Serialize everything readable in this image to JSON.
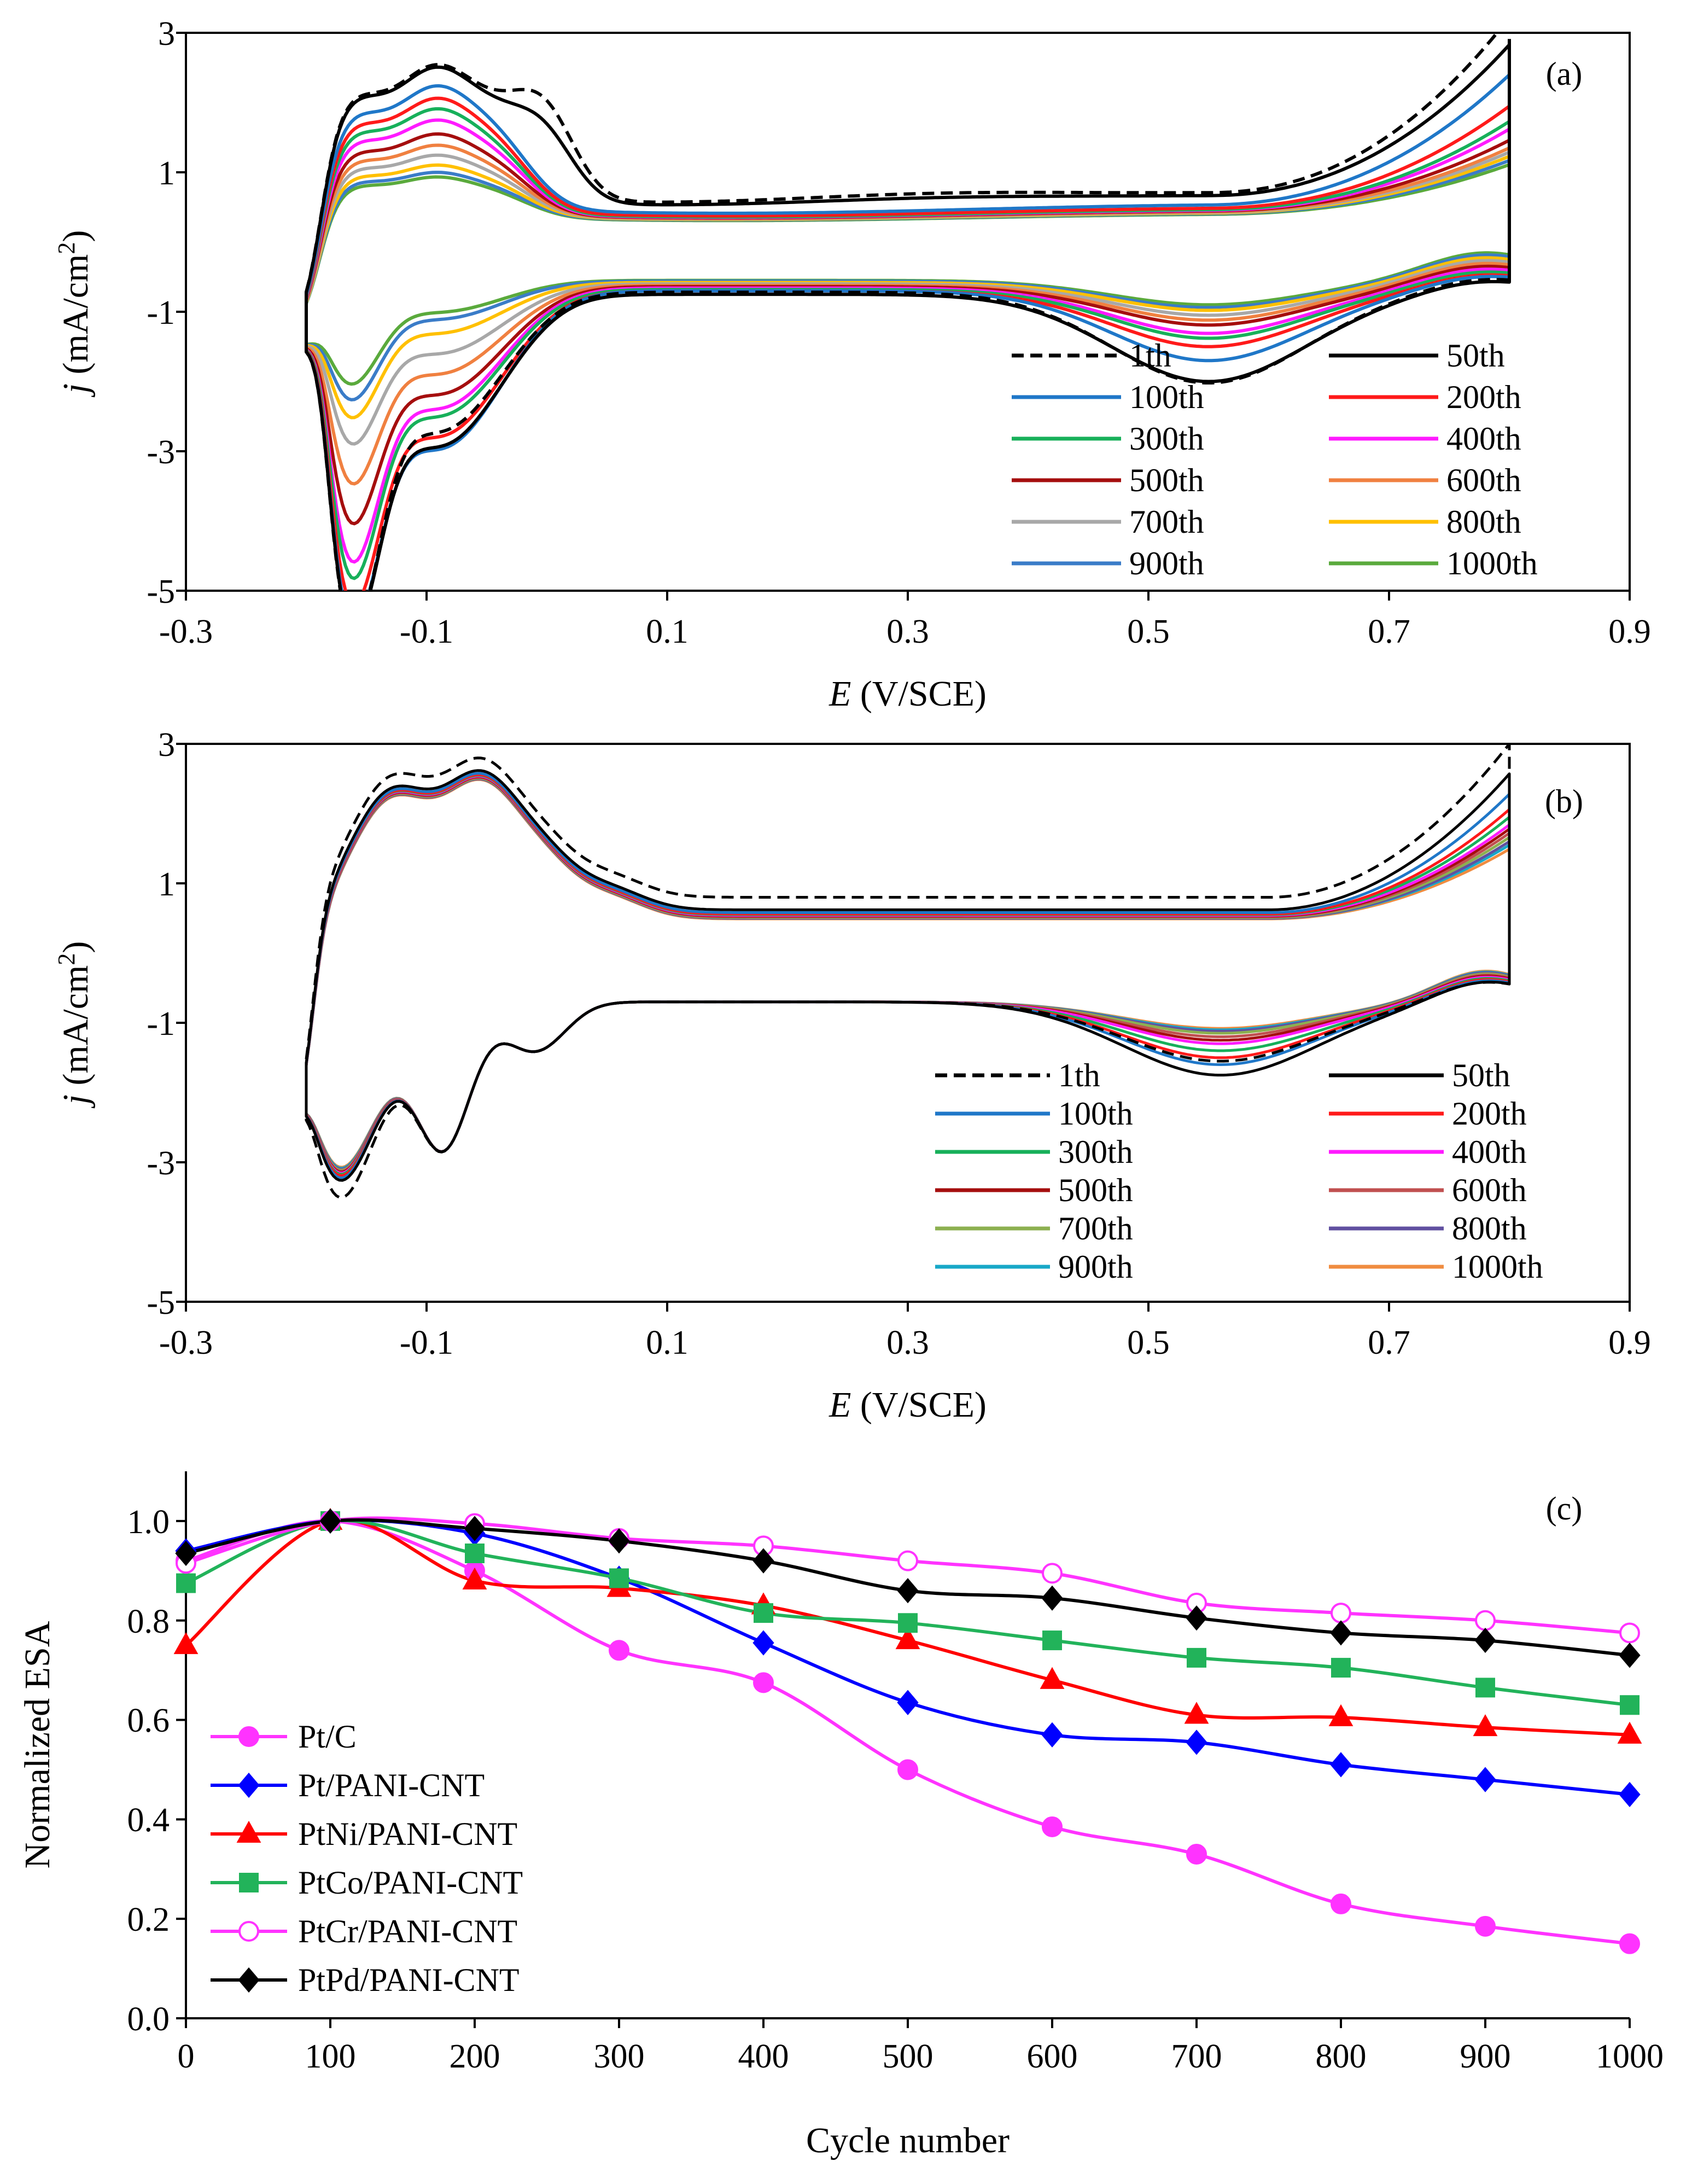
{
  "chart_data": [
    {
      "panel": "(a)",
      "type": "line",
      "xlabel_italic": "E",
      "xlabel_rest": " (V/SCE)",
      "ylabel_italic": "j",
      "ylabel_rest": " (mA/cm",
      "ylabel_sup": "2",
      "ylabel_close": ")",
      "xlim": [
        -0.3,
        0.9
      ],
      "ylim": [
        -5,
        3
      ],
      "xticks": [
        "-0.3",
        "-0.1",
        "0.1",
        "0.3",
        "0.5",
        "0.7",
        "0.9"
      ],
      "yticks": [
        "3",
        "1",
        "-1",
        "-3",
        "-5"
      ],
      "legend_location": "bottom-right",
      "legend": [
        {
          "label": "1th",
          "color": "#000000",
          "dash": true
        },
        {
          "label": "50th",
          "color": "#000000"
        },
        {
          "label": "100th",
          "color": "#1f77c8"
        },
        {
          "label": "200th",
          "color": "#ff1a1a"
        },
        {
          "label": "300th",
          "color": "#17b05a"
        },
        {
          "label": "400th",
          "color": "#ff1aff"
        },
        {
          "label": "500th",
          "color": "#a50e0e"
        },
        {
          "label": "600th",
          "color": "#f08040"
        },
        {
          "label": "700th",
          "color": "#a8a8a8"
        },
        {
          "label": "800th",
          "color": "#ffc000"
        },
        {
          "label": "900th",
          "color": "#3a7cc8"
        },
        {
          "label": "1000th",
          "color": "#5aaa3c"
        }
      ],
      "curve_params": [
        {
          "s": 1.0,
          "hump": 0.35,
          "oxtail": 2.5,
          "redpk": 1.3,
          "baseU": 0.72,
          "baseL": -0.72,
          "hupd": 2.2,
          "hupd_red": 4.5,
          "q": 0.0
        },
        {
          "s": 1.0,
          "hump": 0.25,
          "oxtail": 2.15,
          "redpk": 1.25,
          "baseU": 0.68,
          "baseL": -0.75,
          "hupd": 2.4,
          "hupd_red": 4.4,
          "q": 0.0
        },
        {
          "s": 0.92,
          "hump": 0.0,
          "oxtail": 1.85,
          "redpk": 1.0,
          "baseU": 0.55,
          "baseL": -0.7,
          "hupd": 2.5,
          "hupd_red": 4.35,
          "q": 0.1
        },
        {
          "s": 0.85,
          "hump": 0.0,
          "oxtail": 1.45,
          "redpk": 0.8,
          "baseU": 0.5,
          "baseL": -0.7,
          "hupd": 2.3,
          "hupd_red": 4.1,
          "q": 0.2
        },
        {
          "s": 0.78,
          "hump": 0.0,
          "oxtail": 1.25,
          "redpk": 0.7,
          "baseU": 0.48,
          "baseL": -0.68,
          "hupd": 2.0,
          "hupd_red": 3.8,
          "q": 0.3
        },
        {
          "s": 0.7,
          "hump": 0.0,
          "oxtail": 1.15,
          "redpk": 0.65,
          "baseU": 0.47,
          "baseL": -0.66,
          "hupd": 1.9,
          "hupd_red": 3.6,
          "q": 0.4
        },
        {
          "s": 0.6,
          "hump": 0.0,
          "oxtail": 1.0,
          "redpk": 0.55,
          "baseU": 0.46,
          "baseL": -0.64,
          "hupd": 1.7,
          "hupd_red": 3.1,
          "q": 0.5
        },
        {
          "s": 0.52,
          "hump": 0.0,
          "oxtail": 0.9,
          "redpk": 0.5,
          "baseU": 0.45,
          "baseL": -0.62,
          "hupd": 1.4,
          "hupd_red": 2.6,
          "q": 0.6
        },
        {
          "s": 0.45,
          "hump": 0.0,
          "oxtail": 0.85,
          "redpk": 0.45,
          "baseU": 0.44,
          "baseL": -0.6,
          "hupd": 1.1,
          "hupd_red": 2.1,
          "q": 0.7
        },
        {
          "s": 0.38,
          "hump": 0.0,
          "oxtail": 0.8,
          "redpk": 0.4,
          "baseU": 0.43,
          "baseL": -0.58,
          "hupd": 0.8,
          "hupd_red": 1.8,
          "q": 0.8
        },
        {
          "s": 0.33,
          "hump": 0.0,
          "oxtail": 0.75,
          "redpk": 0.38,
          "baseU": 0.42,
          "baseL": -0.56,
          "hupd": 0.6,
          "hupd_red": 1.6,
          "q": 0.9
        },
        {
          "s": 0.3,
          "hump": 0.0,
          "oxtail": 0.7,
          "redpk": 0.35,
          "baseU": 0.41,
          "baseL": -0.55,
          "hupd": 0.5,
          "hupd_red": 1.4,
          "q": 1.0
        }
      ]
    },
    {
      "panel": "(b)",
      "type": "line",
      "xlabel_italic": "E",
      "xlabel_rest": " (V/SCE)",
      "ylabel_italic": "j",
      "ylabel_rest": " (mA/cm",
      "ylabel_sup": "2",
      "ylabel_close": ")",
      "xlim": [
        -0.3,
        0.9
      ],
      "ylim": [
        -5,
        3
      ],
      "xticks": [
        "-0.3",
        "-0.1",
        "0.1",
        "0.3",
        "0.5",
        "0.7",
        "0.9"
      ],
      "yticks": [
        "3",
        "1",
        "-1",
        "-3",
        "-5"
      ],
      "legend_location": "bottom-right",
      "legend": [
        {
          "label": "1th",
          "color": "#000000",
          "dash": true
        },
        {
          "label": "50th",
          "color": "#000000"
        },
        {
          "label": "100th",
          "color": "#1f77c8"
        },
        {
          "label": "200th",
          "color": "#ff1a1a"
        },
        {
          "label": "300th",
          "color": "#17b05a"
        },
        {
          "label": "400th",
          "color": "#ff1aff"
        },
        {
          "label": "500th",
          "color": "#a50e0e"
        },
        {
          "label": "600th",
          "color": "#c05050"
        },
        {
          "label": "700th",
          "color": "#8cb050"
        },
        {
          "label": "800th",
          "color": "#6050a0"
        },
        {
          "label": "900th",
          "color": "#18a8c8"
        },
        {
          "label": "1000th",
          "color": "#f08c40"
        }
      ],
      "curve_params": [
        {
          "oxtail": 2.2,
          "redpk": 0.85,
          "baseU": 0.8,
          "hupd_red": 3.6,
          "q": 0.0
        },
        {
          "oxtail": 1.95,
          "redpk": 1.05,
          "baseU": 0.62,
          "hupd_red": 3.25,
          "q": 0.05
        },
        {
          "oxtail": 1.7,
          "redpk": 0.9,
          "baseU": 0.58,
          "hupd_red": 3.2,
          "q": 0.15
        },
        {
          "oxtail": 1.5,
          "redpk": 0.8,
          "baseU": 0.56,
          "hupd_red": 3.15,
          "q": 0.25
        },
        {
          "oxtail": 1.4,
          "redpk": 0.7,
          "baseU": 0.55,
          "hupd_red": 3.12,
          "q": 0.35
        },
        {
          "oxtail": 1.3,
          "redpk": 0.6,
          "baseU": 0.54,
          "hupd_red": 3.1,
          "q": 0.45
        },
        {
          "oxtail": 1.25,
          "redpk": 0.55,
          "baseU": 0.53,
          "hupd_red": 3.08,
          "q": 0.55
        },
        {
          "oxtail": 1.2,
          "redpk": 0.5,
          "baseU": 0.52,
          "hupd_red": 3.06,
          "q": 0.65
        },
        {
          "oxtail": 1.15,
          "redpk": 0.45,
          "baseU": 0.51,
          "hupd_red": 3.04,
          "q": 0.75
        },
        {
          "oxtail": 1.1,
          "redpk": 0.42,
          "baseU": 0.5,
          "hupd_red": 3.02,
          "q": 0.85
        },
        {
          "oxtail": 1.05,
          "redpk": 0.4,
          "baseU": 0.5,
          "hupd_red": 3.0,
          "q": 0.92
        },
        {
          "oxtail": 1.0,
          "redpk": 0.38,
          "baseU": 0.49,
          "hupd_red": 2.98,
          "q": 1.0
        }
      ]
    },
    {
      "panel": "(c)",
      "type": "line",
      "xlabel": "Cycle number",
      "ylabel": "Normalized ESA",
      "xlim": [
        0,
        1000
      ],
      "ylim": [
        0,
        1.1
      ],
      "xticks": [
        "0",
        "100",
        "200",
        "300",
        "400",
        "500",
        "600",
        "700",
        "800",
        "900",
        "1000"
      ],
      "yticks": [
        "0.0",
        "0.2",
        "0.4",
        "0.6",
        "0.8",
        "1.0"
      ],
      "legend_location": "bottom-left",
      "x": [
        0,
        100,
        200,
        300,
        400,
        500,
        600,
        700,
        800,
        900,
        1000
      ],
      "series": [
        {
          "name": "Pt/C",
          "color": "#ff33ff",
          "marker": "circle",
          "filled": true,
          "values": [
            0.92,
            1.0,
            0.9,
            0.74,
            0.675,
            0.5,
            0.385,
            0.33,
            0.23,
            0.185,
            0.15
          ]
        },
        {
          "name": "Pt/PANI-CNT",
          "color": "#0000ff",
          "marker": "diamond",
          "filled": true,
          "values": [
            0.94,
            1.0,
            0.975,
            0.885,
            0.755,
            0.635,
            0.57,
            0.555,
            0.51,
            0.48,
            0.45
          ]
        },
        {
          "name": "PtNi/PANI-CNT",
          "color": "#ff0000",
          "marker": "triangle",
          "filled": true,
          "values": [
            0.75,
            1.0,
            0.88,
            0.865,
            0.83,
            0.76,
            0.68,
            0.61,
            0.605,
            0.585,
            0.57
          ]
        },
        {
          "name": "PtCo/PANI-CNT",
          "color": "#22b35a",
          "marker": "square",
          "filled": true,
          "values": [
            0.875,
            1.0,
            0.935,
            0.885,
            0.815,
            0.795,
            0.76,
            0.725,
            0.705,
            0.665,
            0.63
          ]
        },
        {
          "name": "PtCr/PANI-CNT",
          "color": "#ff33ff",
          "marker": "circle",
          "filled": false,
          "values": [
            0.915,
            1.0,
            0.995,
            0.965,
            0.95,
            0.92,
            0.895,
            0.835,
            0.815,
            0.8,
            0.775
          ]
        },
        {
          "name": "PtPd/PANI-CNT",
          "color": "#000000",
          "marker": "diamond",
          "filled": true,
          "values": [
            0.935,
            1.0,
            0.985,
            0.96,
            0.92,
            0.86,
            0.845,
            0.805,
            0.775,
            0.76,
            0.73
          ]
        }
      ]
    }
  ]
}
